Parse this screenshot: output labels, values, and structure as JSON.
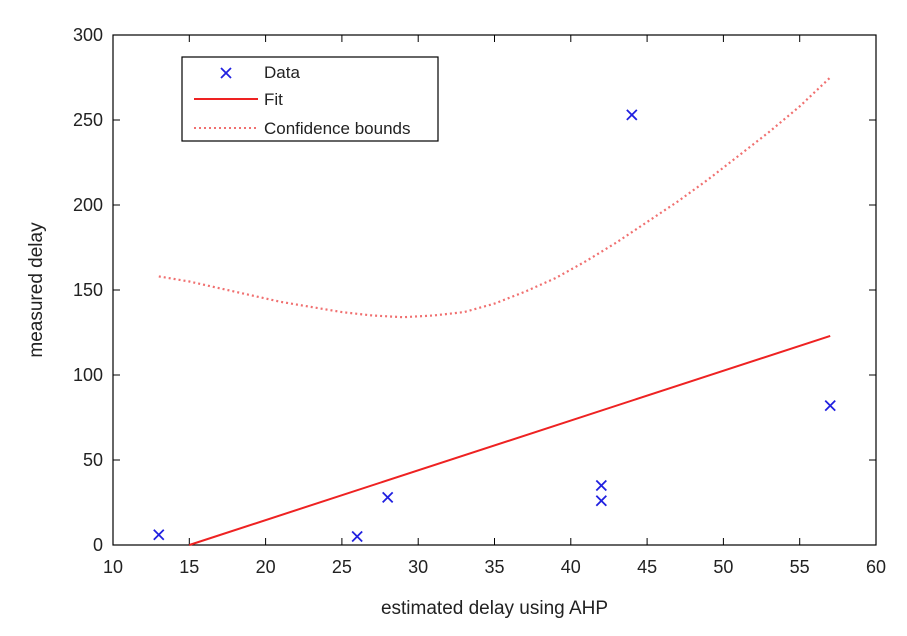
{
  "colors": {
    "data": "#2020e0",
    "fit": "#ee2222",
    "bounds": "#f07070",
    "axis": "#000000",
    "background": "#ffffff"
  },
  "chart_data": {
    "type": "scatter",
    "xlabel": "estimated delay using AHP",
    "ylabel": "measured delay",
    "xlim": [
      10,
      60
    ],
    "ylim": [
      0,
      300
    ],
    "xticks": [
      10,
      15,
      20,
      25,
      30,
      35,
      40,
      45,
      50,
      55,
      60
    ],
    "yticks": [
      0,
      50,
      100,
      150,
      200,
      250,
      300
    ],
    "grid": false,
    "legend_position": "top-left",
    "series": [
      {
        "name": "Data",
        "kind": "markers",
        "marker": "x",
        "x": [
          13,
          26,
          28,
          42,
          42,
          44,
          57
        ],
        "y": [
          6,
          5,
          28,
          26,
          35,
          253,
          82
        ]
      },
      {
        "name": "Fit",
        "kind": "line",
        "style": "solid",
        "x": [
          15,
          57
        ],
        "y": [
          0,
          123
        ]
      },
      {
        "name": "Confidence bounds",
        "kind": "line",
        "style": "dotted",
        "x": [
          13,
          15,
          17,
          19,
          21,
          23,
          25,
          27,
          29,
          31,
          33,
          35,
          37,
          39,
          41,
          43,
          45,
          47,
          49,
          51,
          53,
          55,
          57
        ],
        "y": [
          158,
          155,
          151,
          147,
          143,
          140,
          137,
          135,
          134,
          135,
          137,
          142,
          149,
          157,
          167,
          178,
          190,
          202,
          215,
          229,
          243,
          258,
          275
        ]
      }
    ]
  }
}
